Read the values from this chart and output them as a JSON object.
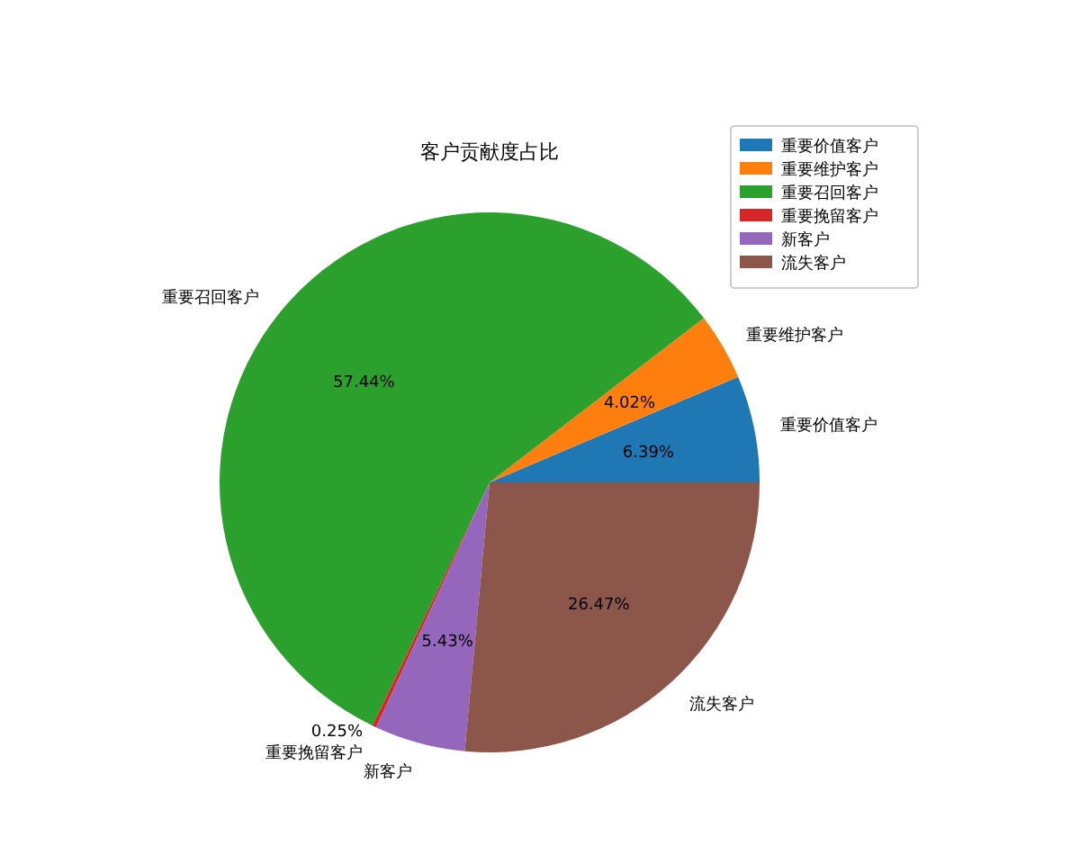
{
  "chart_data": {
    "type": "pie",
    "title": "客户贡献度占比",
    "categories": [
      "重要价值客户",
      "重要维护客户",
      "重要召回客户",
      "重要挽留客户",
      "新客户",
      "流失客户"
    ],
    "values": [
      6.39,
      4.02,
      57.44,
      0.25,
      5.43,
      26.47
    ],
    "value_labels": [
      "6.39%",
      "4.02%",
      "57.44%",
      "0.25%",
      "5.43%",
      "26.47%"
    ],
    "colors": [
      "#1f77b4",
      "#ff7f0e",
      "#2ca02c",
      "#d62728",
      "#9467bd",
      "#8c564b"
    ],
    "legend": "top right"
  }
}
